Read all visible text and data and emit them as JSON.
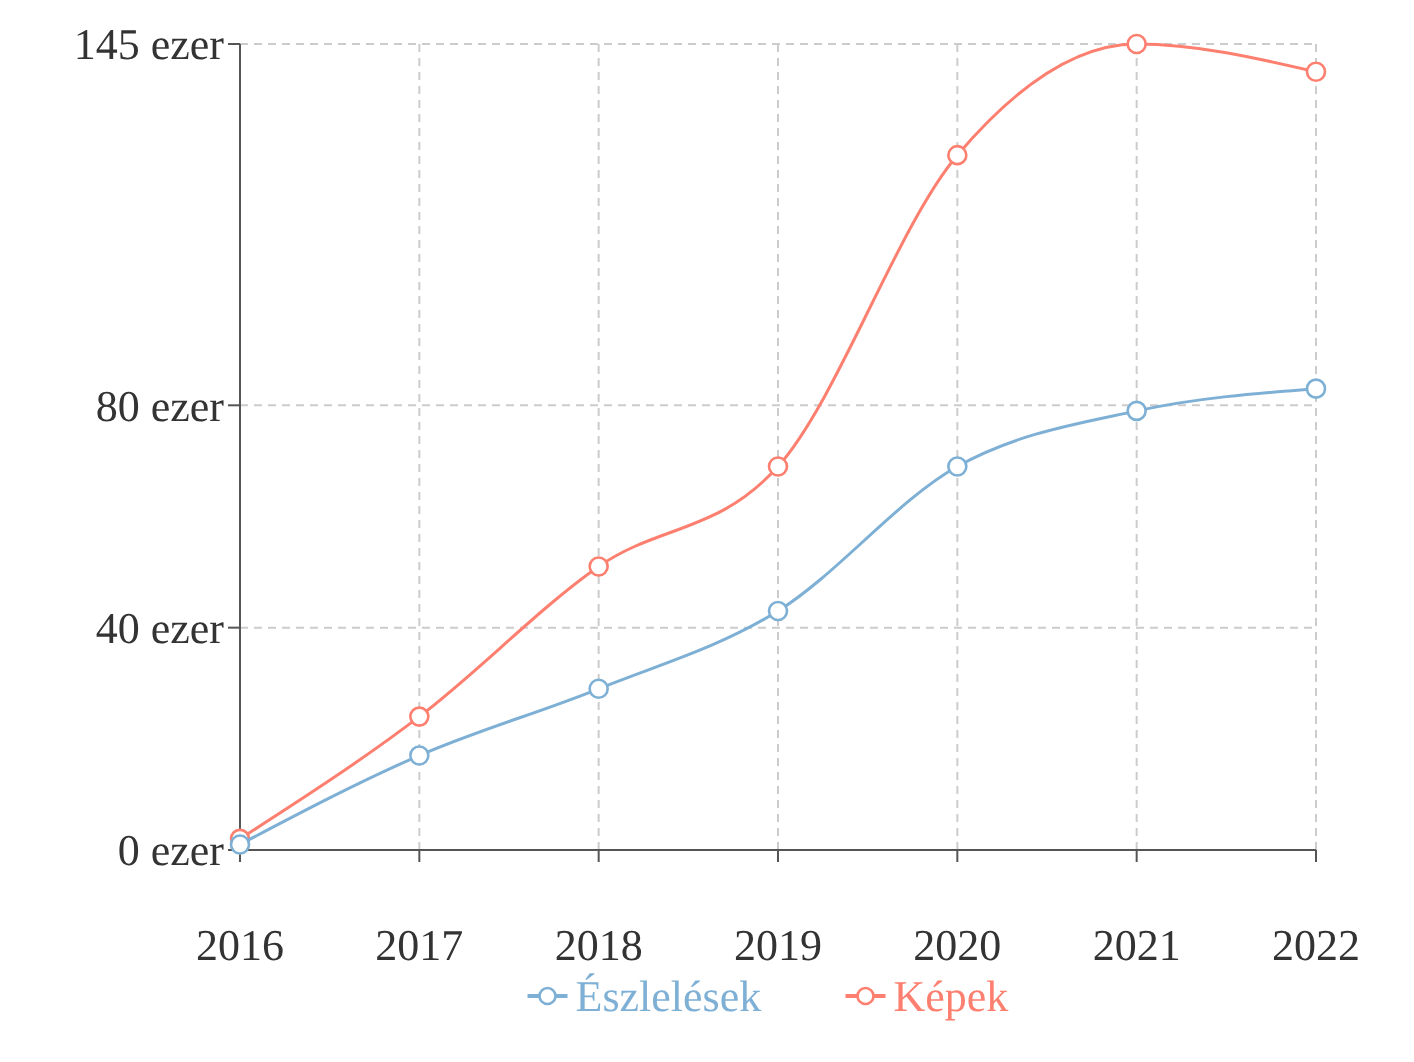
{
  "chart_data": {
    "type": "line",
    "categories": [
      "2016",
      "2017",
      "2018",
      "2019",
      "2020",
      "2021",
      "2022"
    ],
    "series": [
      {
        "name": "Észlelések",
        "color": "#7eb0d5",
        "values": [
          1,
          17,
          29,
          43,
          69,
          79,
          83
        ]
      },
      {
        "name": "Képek",
        "color": "#fd7f6f",
        "values": [
          2,
          24,
          51,
          69,
          125,
          145,
          140
        ]
      }
    ],
    "ylim": [
      0,
      145
    ],
    "yticks": [
      {
        "value": 0,
        "label": "0 ezer"
      },
      {
        "value": 40,
        "label": "40 ezer"
      },
      {
        "value": 80,
        "label": "80 ezer"
      },
      {
        "value": 145,
        "label": "145 ezer"
      }
    ],
    "grid": true,
    "legend": "bottom",
    "marker": "circle",
    "line_style": "solid"
  }
}
